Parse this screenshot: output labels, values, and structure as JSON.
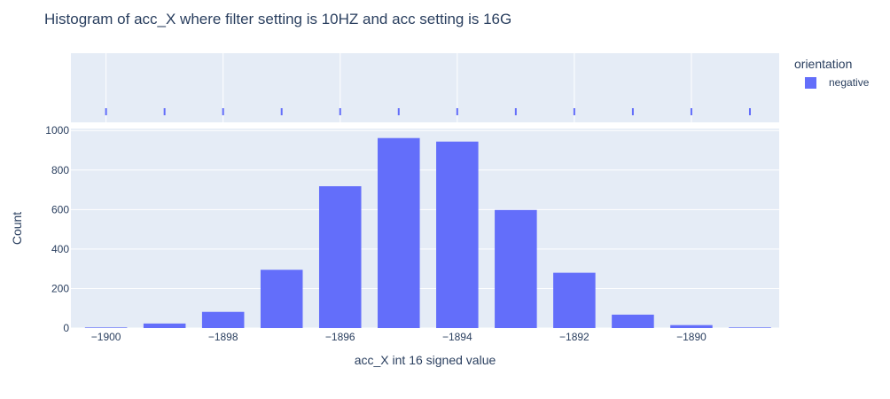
{
  "chart_data": {
    "type": "bar",
    "title": "Histogram of acc_X where filter setting is 10HZ and acc setting is 16G",
    "xlabel": "acc_X int 16 signed value",
    "ylabel": "Count",
    "legend": {
      "title": "orientation",
      "position": "right",
      "entries": [
        "negative"
      ]
    },
    "series": [
      {
        "name": "negative",
        "x": [
          -1900,
          -1899,
          -1898,
          -1897,
          -1896,
          -1895,
          -1894,
          -1893,
          -1892,
          -1891,
          -1890,
          -1889
        ],
        "values": [
          3,
          23,
          82,
          295,
          718,
          962,
          944,
          598,
          280,
          68,
          15,
          3
        ]
      }
    ],
    "x_range": [
      -1900.6,
      -1888.5
    ],
    "y_range": [
      0,
      1010
    ],
    "x_ticks": [
      -1900,
      -1898,
      -1896,
      -1894,
      -1892,
      -1890
    ],
    "x_tick_labels": [
      "−1900",
      "−1898",
      "−1896",
      "−1894",
      "−1892",
      "−1890"
    ],
    "y_ticks": [
      0,
      200,
      400,
      600,
      800,
      1000
    ],
    "y_tick_labels": [
      "0",
      "200",
      "400",
      "600",
      "800",
      "1000"
    ],
    "marginal": "rug",
    "grid": true,
    "colors": {
      "series": "#636efa",
      "plot_bg": "#e5ecf6",
      "grid": "#ffffff",
      "text": "#2a3f5f"
    }
  }
}
